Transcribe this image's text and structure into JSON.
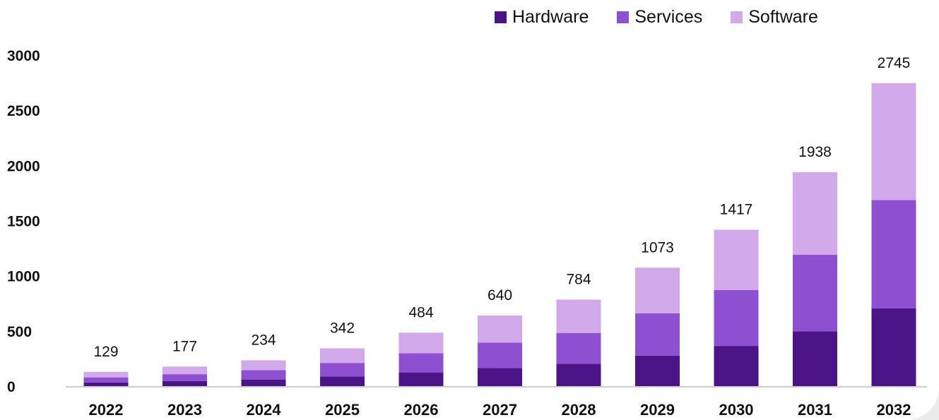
{
  "chart_data": {
    "type": "bar",
    "stacked": true,
    "title_fragment": "",
    "categories": [
      "2022",
      "2023",
      "2024",
      "2025",
      "2026",
      "2027",
      "2028",
      "2029",
      "2030",
      "2031",
      "2032"
    ],
    "totals": [
      129,
      177,
      234,
      342,
      484,
      640,
      784,
      1073,
      1417,
      1938,
      2745
    ],
    "series": [
      {
        "name": "Hardware",
        "color": "#4a1486",
        "values": [
          33,
          45,
          60,
          88,
          124,
          165,
          202,
          276,
          364,
          497,
          704
        ]
      },
      {
        "name": "Services",
        "color": "#8e4fd0",
        "values": [
          46,
          63,
          84,
          122,
          174,
          229,
          280,
          384,
          507,
          693,
          982
        ]
      },
      {
        "name": "Software",
        "color": "#d1a8ea",
        "values": [
          50,
          69,
          90,
          132,
          186,
          246,
          302,
          413,
          546,
          748,
          1059
        ]
      }
    ],
    "yticks": [
      0,
      500,
      1000,
      1500,
      2000,
      2500,
      3000
    ],
    "ylim": [
      0,
      3000
    ],
    "grid": false,
    "legend_position": "top-right"
  }
}
